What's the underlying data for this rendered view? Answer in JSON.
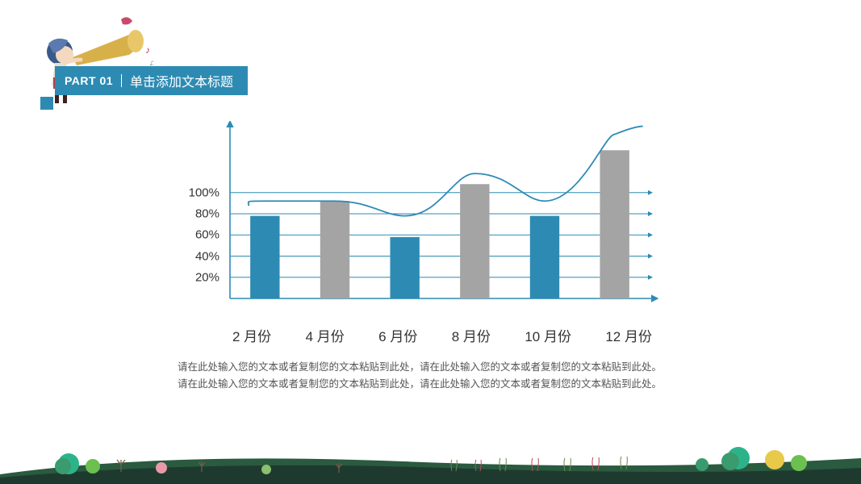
{
  "header": {
    "part": "PART 01",
    "title": "单击添加文本标题"
  },
  "chart": {
    "type": "bar+line",
    "categories": [
      "2 月份",
      "4 月份",
      "6 月份",
      "8 月份",
      "10 月份",
      "12 月份"
    ],
    "values": [
      78,
      92,
      58,
      108,
      78,
      140
    ],
    "bar_colors": [
      "#2d8bb3",
      "#a4a4a4",
      "#2d8bb3",
      "#a4a4a4",
      "#2d8bb3",
      "#a4a4a4"
    ],
    "line_points": [
      92,
      92,
      78,
      118,
      92,
      155
    ],
    "line_color": "#2d8bb3",
    "line_width": 1.8,
    "ylim": [
      0,
      160
    ],
    "ytick_values": [
      20,
      40,
      60,
      80,
      100
    ],
    "ytick_labels": [
      "20%",
      "40%",
      "60%",
      "80%",
      "100%"
    ],
    "grid_color": "#2d8bb3",
    "grid_width": 1,
    "axis_color": "#2d8bb3",
    "bar_width_ratio": 0.42,
    "background": "#ffffff",
    "label_fontsize": 17,
    "ylabel_fontsize": 15
  },
  "body": {
    "line1": "请在此处输入您的文本或者复制您的文本粘贴到此处，请在此处输入您的文本或者复制您的文本粘贴到此处。",
    "line2": "请在此处输入您的文本或者复制您的文本粘贴到此处，请在此处输入您的文本或者复制您的文本粘贴到此处。"
  },
  "palette": {
    "primary": "#2d8bb3",
    "grey": "#a4a4a4",
    "hill_dark": "#1e3a2f",
    "hill_mid": "#3a6b4a",
    "tree_greens": [
      "#2db38a",
      "#6bc04f",
      "#e8c94a",
      "#3a9b6e"
    ],
    "text": "#333333",
    "body_text": "#555555"
  }
}
